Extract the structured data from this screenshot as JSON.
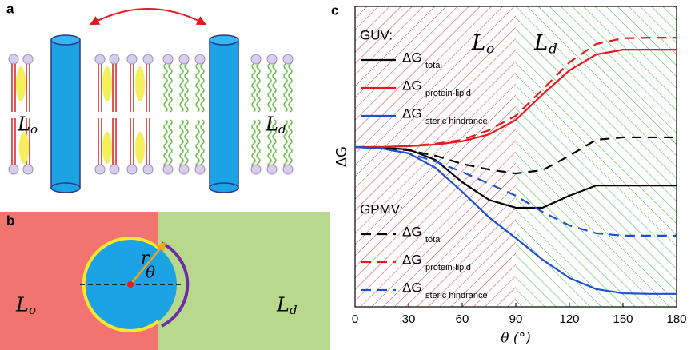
{
  "chart_data": {
    "type": "line",
    "panel_label": "c",
    "x_label": "θ (°)",
    "y_label": "ΔG",
    "x": [
      0,
      15,
      30,
      45,
      60,
      75,
      90,
      105,
      120,
      135,
      150,
      165,
      180
    ],
    "xlim": [
      0,
      180
    ],
    "xticks": [
      0,
      30,
      60,
      90,
      120,
      150,
      180
    ],
    "ylim": [
      0,
      10
    ],
    "regions": [
      {
        "label": "L",
        "subscript": "o",
        "from": 0,
        "to": 90,
        "color": "#e03a3a"
      },
      {
        "label": "L",
        "subscript": "d",
        "from": 90,
        "to": 180,
        "color": "#3cb43c"
      }
    ],
    "legend_titles": [
      "GUV:",
      "GPMV:"
    ],
    "series": [
      {
        "name": "ΔG",
        "subscript": "total",
        "color": "#000000",
        "dashed": false,
        "values": [
          5.32,
          5.29,
          5.24,
          4.89,
          4.15,
          3.56,
          3.3,
          3.3,
          3.7,
          4.04,
          4.04,
          4.04,
          4.04
        ]
      },
      {
        "name": "ΔG",
        "subscript": "protein-lipid",
        "color": "#e8191e",
        "dashed": false,
        "values": [
          5.32,
          5.32,
          5.35,
          5.4,
          5.51,
          5.74,
          6.22,
          7.07,
          7.87,
          8.4,
          8.56,
          8.56,
          8.56
        ]
      },
      {
        "name": "ΔG",
        "subscript": "steric hindrance",
        "color": "#1a4fd6",
        "dashed": false,
        "values": [
          5.32,
          5.27,
          5.11,
          4.63,
          3.83,
          2.98,
          2.29,
          1.57,
          0.96,
          0.59,
          0.45,
          0.43,
          0.43
        ]
      },
      {
        "name": "ΔG",
        "subscript": "total",
        "color": "#000000",
        "dashed": true,
        "values": [
          5.32,
          5.29,
          5.21,
          5.03,
          4.76,
          4.57,
          4.44,
          4.55,
          5.03,
          5.56,
          5.64,
          5.64,
          5.64
        ]
      },
      {
        "name": "ΔG",
        "subscript": "protein-lipid",
        "color": "#e8191e",
        "dashed": true,
        "values": [
          5.32,
          5.32,
          5.35,
          5.43,
          5.56,
          5.88,
          6.36,
          7.23,
          8.14,
          8.75,
          8.94,
          8.96,
          8.96
        ]
      },
      {
        "name": "ΔG",
        "subscript": "steric hindrance",
        "color": "#1a4fd6",
        "dashed": true,
        "values": [
          5.32,
          5.27,
          5.11,
          4.84,
          4.49,
          4.1,
          3.7,
          3.16,
          2.71,
          2.45,
          2.37,
          2.37,
          2.37
        ]
      }
    ]
  },
  "panel_a": {
    "label": "a",
    "left_phase": "L",
    "left_sub": "o",
    "right_phase": "L",
    "right_sub": "d"
  },
  "panel_b": {
    "label": "b",
    "left_phase": "L",
    "left_sub": "o",
    "right_phase": "L",
    "right_sub": "d",
    "radius": "r",
    "angle": "θ"
  }
}
